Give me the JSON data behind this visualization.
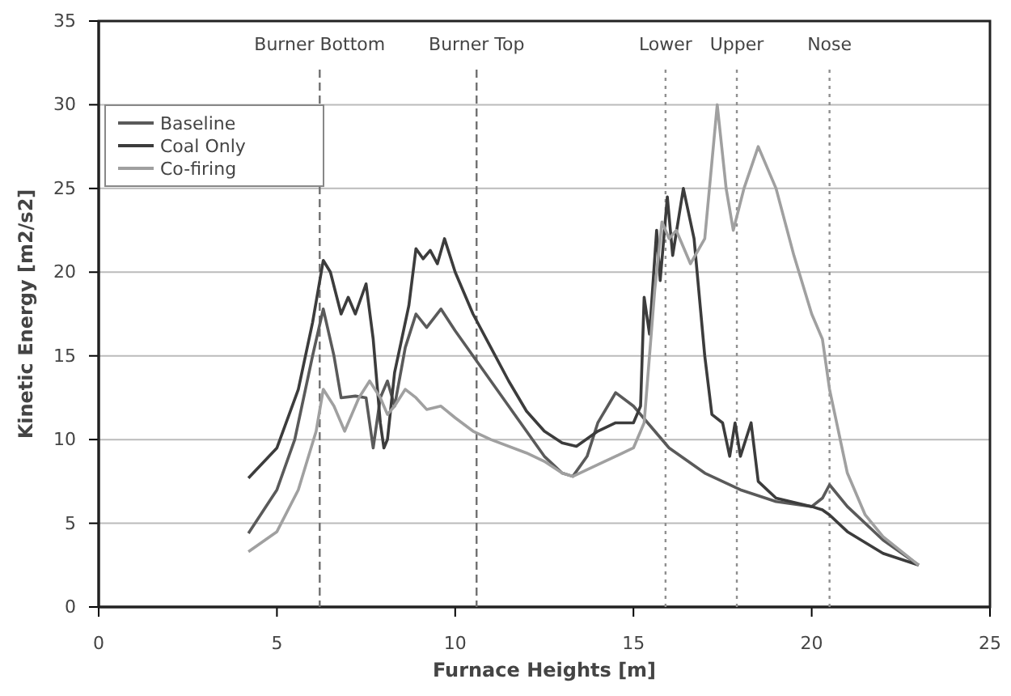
{
  "chart_data": {
    "type": "line",
    "xlabel": "Furnace Heights [m]",
    "ylabel": "Kinetic Energy  [m2/s2]",
    "xlim": [
      0,
      25
    ],
    "xticks": [
      0,
      5,
      10,
      15,
      20,
      25
    ],
    "ylim": [
      0,
      35
    ],
    "yticks": [
      0,
      5,
      10,
      15,
      20,
      25,
      30,
      35
    ],
    "grid": "y",
    "legend": "top left",
    "line_style": "solid",
    "marker": "none",
    "series": [
      {
        "name": "Baseline",
        "color": "#5a5a5a",
        "x": [
          4.2,
          5,
          5.5,
          6.0,
          6.3,
          6.6,
          6.8,
          7.2,
          7.5,
          7.7,
          7.9,
          8.1,
          8.3,
          8.6,
          8.9,
          9.2,
          9.6,
          10,
          10.5,
          11,
          11.5,
          12,
          12.5,
          13,
          13.3,
          13.7,
          14,
          14.5,
          15,
          15.4,
          16,
          17,
          18,
          19,
          20,
          20.3,
          20.5,
          21,
          22,
          23
        ],
        "values": [
          4.4,
          7,
          10,
          15,
          17.8,
          15,
          12.5,
          12.6,
          12.5,
          9.5,
          12.5,
          13.5,
          12,
          15.5,
          17.5,
          16.7,
          17.8,
          16.5,
          15,
          13.5,
          12,
          10.5,
          9,
          8,
          7.8,
          9,
          11,
          12.8,
          12,
          11,
          9.5,
          8,
          7,
          6.3,
          6,
          6.5,
          7.3,
          6,
          4,
          2.5
        ]
      },
      {
        "name": "Coal Only",
        "color": "#3c3c3c",
        "x": [
          4.2,
          5,
          5.6,
          6.0,
          6.3,
          6.5,
          6.8,
          7.0,
          7.2,
          7.5,
          7.7,
          7.9,
          8.0,
          8.1,
          8.3,
          8.5,
          8.7,
          8.9,
          9.1,
          9.3,
          9.5,
          9.7,
          10,
          10.5,
          11,
          11.5,
          12,
          12.5,
          13,
          13.4,
          14,
          14.5,
          15,
          15.2,
          15.3,
          15.45,
          15.65,
          15.75,
          15.95,
          16.1,
          16.4,
          16.7,
          17,
          17.2,
          17.5,
          17.7,
          17.85,
          18.0,
          18.3,
          18.5,
          19,
          20,
          20.3,
          20.5,
          21,
          22,
          23
        ],
        "values": [
          7.7,
          9.5,
          13,
          17,
          20.7,
          20,
          17.5,
          18.5,
          17.5,
          19.3,
          16,
          11,
          9.5,
          10,
          14,
          16,
          18,
          21.4,
          20.8,
          21.3,
          20.5,
          22,
          20,
          17.5,
          15.5,
          13.5,
          11.7,
          10.5,
          9.8,
          9.6,
          10.5,
          11,
          11,
          12,
          18.5,
          16.3,
          22.5,
          19.5,
          24.5,
          21,
          25,
          22,
          15,
          11.5,
          11,
          9,
          11,
          9,
          11,
          7.5,
          6.5,
          6,
          5.8,
          5.5,
          4.5,
          3.2,
          2.5
        ]
      },
      {
        "name": "Co-firing",
        "color": "#a0a0a0",
        "x": [
          4.2,
          5,
          5.6,
          6.1,
          6.3,
          6.6,
          6.9,
          7.3,
          7.6,
          7.9,
          8.1,
          8.3,
          8.6,
          8.9,
          9.2,
          9.6,
          10,
          10.5,
          11,
          12,
          12.5,
          13,
          13.3,
          14,
          15,
          15.3,
          15.6,
          15.8,
          16,
          16.2,
          16.6,
          17,
          17.35,
          17.6,
          17.8,
          18.1,
          18.5,
          19,
          19.5,
          20,
          20.3,
          20.5,
          21,
          21.5,
          22,
          23
        ],
        "values": [
          3.3,
          4.5,
          7,
          10.5,
          13,
          12,
          10.5,
          12.5,
          13.5,
          12.5,
          11.5,
          12,
          13,
          12.5,
          11.8,
          12,
          11.3,
          10.5,
          10,
          9.2,
          8.7,
          8,
          7.8,
          8.5,
          9.5,
          11,
          19,
          23,
          22,
          22.5,
          20.5,
          22,
          30,
          25,
          22.5,
          25,
          27.5,
          25,
          21,
          17.5,
          16,
          13,
          8,
          5.5,
          4.2,
          2.5
        ]
      }
    ],
    "ref_lines": [
      {
        "axis": "x",
        "value": 6.2,
        "label": "Burner Bottom",
        "color": "#707070",
        "line_style": "dashed"
      },
      {
        "axis": "x",
        "value": 10.6,
        "label": "Burner Top",
        "color": "#707070",
        "line_style": "dashed"
      },
      {
        "axis": "x",
        "value": 15.9,
        "label": "Lower",
        "color": "#909090",
        "line_style": "dotted"
      },
      {
        "axis": "x",
        "value": 17.9,
        "label": "Upper",
        "color": "#909090",
        "line_style": "dotted"
      },
      {
        "axis": "x",
        "value": 20.5,
        "label": "Nose",
        "color": "#909090",
        "line_style": "dotted"
      }
    ]
  }
}
